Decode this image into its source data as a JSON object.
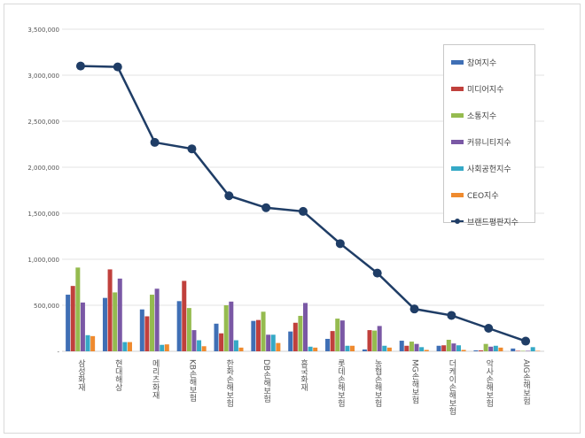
{
  "chart_data": {
    "type": "bar+line",
    "title": "",
    "categories": [
      "삼성화재",
      "현대해상",
      "메리츠화재",
      "KB손해보험",
      "한화손해보험",
      "DB손해보험",
      "흥국화재",
      "롯데손해보험",
      "농협손해보험",
      "MG손해보험",
      "더케이손해보험",
      "악사손해보험",
      "AIG손해보험"
    ],
    "ylim": [
      0,
      3500000
    ],
    "yticks": [
      "-",
      "500,000",
      "1,000,000",
      "1,500,000",
      "2,000,000",
      "2,500,000",
      "3,000,000",
      "3,500,000"
    ],
    "legend_position": "right",
    "grid": true,
    "series": [
      {
        "name": "참여지수",
        "color": "#3f6fb5",
        "type": "bar",
        "values": [
          615000,
          580000,
          455000,
          545000,
          300000,
          330000,
          215000,
          135000,
          20000,
          115000,
          60000,
          10000,
          30000
        ]
      },
      {
        "name": "미디어지수",
        "color": "#c0403c",
        "type": "bar",
        "values": [
          710000,
          890000,
          380000,
          765000,
          195000,
          340000,
          310000,
          220000,
          230000,
          60000,
          65000,
          10000,
          5000
        ]
      },
      {
        "name": "소통지수",
        "color": "#95bb4f",
        "type": "bar",
        "values": [
          910000,
          640000,
          615000,
          470000,
          500000,
          430000,
          385000,
          355000,
          225000,
          105000,
          125000,
          80000,
          5000
        ]
      },
      {
        "name": "커뮤니티지수",
        "color": "#7a58a5",
        "type": "bar",
        "values": [
          530000,
          790000,
          680000,
          230000,
          540000,
          180000,
          525000,
          335000,
          275000,
          80000,
          85000,
          50000,
          5000
        ]
      },
      {
        "name": "사회공헌지수",
        "color": "#35a9c6",
        "type": "bar",
        "values": [
          175000,
          100000,
          70000,
          120000,
          120000,
          180000,
          50000,
          60000,
          60000,
          45000,
          65000,
          60000,
          45000
        ]
      },
      {
        "name": "CEO지수",
        "color": "#ef8a2e",
        "type": "bar",
        "values": [
          165000,
          100000,
          75000,
          55000,
          40000,
          90000,
          40000,
          60000,
          40000,
          15000,
          15000,
          40000,
          5000
        ]
      },
      {
        "name": "브랜드평판지수",
        "color": "#1f3d66",
        "type": "line",
        "values": [
          3100000,
          3090000,
          2270000,
          2200000,
          1690000,
          1560000,
          1520000,
          1170000,
          850000,
          460000,
          390000,
          250000,
          110000
        ]
      }
    ]
  }
}
